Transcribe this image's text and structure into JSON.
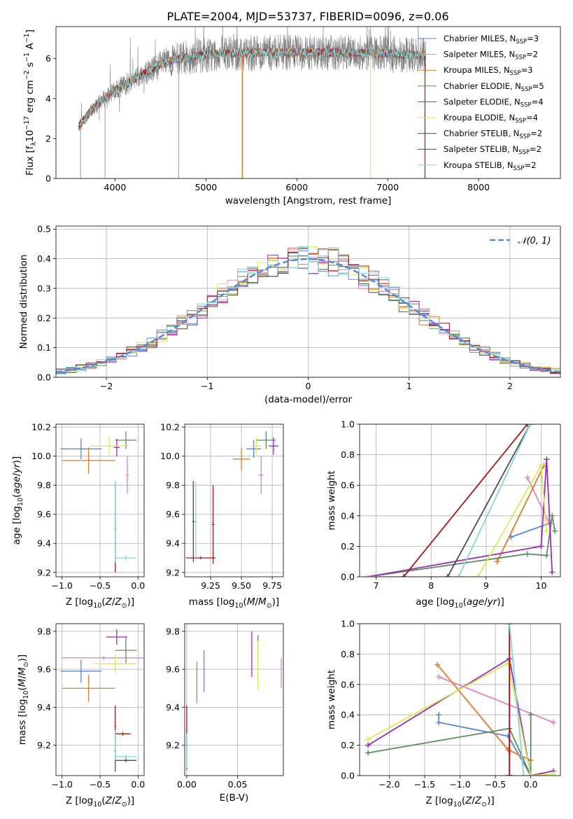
{
  "figure": {
    "title": "PLATE=2004, MJD=53737, FIBERID=0096, z=0.06",
    "colors": {
      "Chabrier MILES": "#5b86d6",
      "Salpeter MILES": "#e384bd",
      "Kroupa MILES": "#e0782a",
      "Chabrier ELODIE": "#5b8d62",
      "Salpeter ELODIE": "#9a2bb0",
      "Kroupa ELODIE": "#d7ea57",
      "Chabrier STELIB": "#4e4e4e",
      "Salpeter STELIB": "#a51818",
      "Kroupa STELIB": "#7fd8d8"
    }
  },
  "chart_data": [
    {
      "id": "spectrum",
      "type": "line",
      "title": "PLATE=2004, MJD=53737, FIBERID=0096, z=0.06",
      "xlabel": "wavelength [Angstrom, rest frame]",
      "ylabel": "Flux [f_λ 10^-17 erg cm^-2 s^-1 A^-1]",
      "xlim": [
        3350,
        8900
      ],
      "ylim": [
        0,
        7.6
      ],
      "xticks": [
        4000,
        5000,
        6000,
        7000,
        8000
      ],
      "yticks": [
        0,
        2,
        4,
        6
      ],
      "grid": false,
      "legend_position": "upper-right",
      "data_color": "#808080",
      "continuum_knots": [
        [
          3600,
          2.6
        ],
        [
          3700,
          3.2
        ],
        [
          3850,
          3.9
        ],
        [
          3950,
          4.2
        ],
        [
          4000,
          4.4
        ],
        [
          4150,
          4.8
        ],
        [
          4300,
          5.2
        ],
        [
          4500,
          5.7
        ],
        [
          4700,
          6.0
        ],
        [
          5000,
          6.2
        ],
        [
          5500,
          6.3
        ],
        [
          6000,
          6.3
        ],
        [
          6500,
          6.3
        ],
        [
          7000,
          6.25
        ],
        [
          7400,
          6.15
        ]
      ],
      "spikes_to_zero": [
        3620,
        3890,
        4700,
        5400,
        6810,
        7410
      ],
      "series": [
        {
          "name": "Chabrier MILES, N_SSP=3",
          "label_main": "Chabrier MILES, N",
          "label_sub": "SSP",
          "label_tail": "=3"
        },
        {
          "name": "Salpeter MILES, N_SSP=2",
          "label_main": "Salpeter MILES, N",
          "label_sub": "SSP",
          "label_tail": "=2"
        },
        {
          "name": "Kroupa MILES, N_SSP=3",
          "label_main": "Kroupa MILES, N",
          "label_sub": "SSP",
          "label_tail": "=3"
        },
        {
          "name": "Chabrier ELODIE, N_SSP=5",
          "label_main": "Chabrier ELODIE, N",
          "label_sub": "SSP",
          "label_tail": "=5"
        },
        {
          "name": "Salpeter ELODIE, N_SSP=4",
          "label_main": "Salpeter ELODIE, N",
          "label_sub": "SSP",
          "label_tail": "=4"
        },
        {
          "name": "Kroupa ELODIE, N_SSP=4",
          "label_main": "Kroupa ELODIE, N",
          "label_sub": "SSP",
          "label_tail": "=4"
        },
        {
          "name": "Chabrier STELIB, N_SSP=2",
          "label_main": "Chabrier STELIB, N",
          "label_sub": "SSP",
          "label_tail": "=2"
        },
        {
          "name": "Salpeter STELIB, N_SSP=2",
          "label_main": "Salpeter STELIB, N",
          "label_sub": "SSP",
          "label_tail": "=2"
        },
        {
          "name": "Kroupa STELIB, N_SSP=2",
          "label_main": "Kroupa STELIB, N",
          "label_sub": "SSP",
          "label_tail": "=2"
        }
      ]
    },
    {
      "id": "residuals",
      "type": "step",
      "xlabel": "(data-model)/error",
      "ylabel": "Normed distribution",
      "xlim": [
        -2.5,
        2.5
      ],
      "ylim": [
        0,
        0.51
      ],
      "xticks": [
        -2,
        -1,
        0,
        1,
        2
      ],
      "yticks": [
        0.0,
        0.1,
        0.2,
        0.3,
        0.4,
        0.5
      ],
      "grid": true,
      "bin_width": 0.1,
      "reference": {
        "name": "𝒩(0, 1)",
        "mean": 0,
        "sigma": 1,
        "color": "#5b86d6",
        "style": "dashed"
      },
      "legend_position": "upper-right"
    },
    {
      "id": "age_vs_Z",
      "type": "errorbar",
      "xlabel": "Z [log10(Z/Z⊙)]",
      "ylabel": "age [log10(age/yr)]",
      "xlim": [
        -1.08,
        0.08
      ],
      "ylim": [
        9.17,
        10.22
      ],
      "xticks": [
        -1.0,
        -0.5,
        0.0
      ],
      "yticks": [
        9.2,
        9.4,
        9.6,
        9.8,
        10.0,
        10.2
      ],
      "grid": true,
      "points": [
        {
          "s": "Chabrier MILES",
          "x": -0.75,
          "xe": 0.27,
          "y": 10.05,
          "ye": 0.07
        },
        {
          "s": "Salpeter MILES",
          "x": -0.14,
          "xe": 0.02,
          "y": 9.87,
          "ye": 0.13
        },
        {
          "s": "Kroupa MILES",
          "x": -0.65,
          "xe": 0.35,
          "y": 9.97,
          "ye": 0.09
        },
        {
          "s": "Chabrier ELODIE",
          "x": -0.16,
          "xe": 0.14,
          "y": 10.11,
          "ye": 0.06
        },
        {
          "s": "Salpeter ELODIE",
          "x": -0.28,
          "xe": 0.04,
          "y": 10.06,
          "ye": 0.06
        },
        {
          "s": "Kroupa ELODIE",
          "x": -0.38,
          "xe": 0.26,
          "y": 10.07,
          "ye": 0.06
        },
        {
          "s": "Chabrier STELIB",
          "x": -0.3,
          "xe": 0.01,
          "y": 9.55,
          "ye": 0.27
        },
        {
          "s": "Salpeter STELIB",
          "x": -0.3,
          "xe": 0.01,
          "y": 9.5,
          "ye": 0.3
        },
        {
          "s": "Kroupa STELIB",
          "x": -0.16,
          "xe": 0.14,
          "y": 9.3,
          "ye": 0.02
        },
        {
          "s": "Kroupa STELIB",
          "x": -0.3,
          "xe": 0.01,
          "y": 9.55,
          "ye": 0.28
        }
      ]
    },
    {
      "id": "age_vs_mass",
      "type": "errorbar",
      "xlabel": "mass [log10(M/M⊙)]",
      "ylabel": "",
      "xlim": [
        9.04,
        9.84
      ],
      "ylim": [
        9.17,
        10.22
      ],
      "xticks": [
        9.25,
        9.5,
        9.75
      ],
      "yticks": [
        9.2,
        9.4,
        9.6,
        9.8,
        10.0,
        10.2
      ],
      "grid": true,
      "points": [
        {
          "s": "Chabrier MILES",
          "x": 9.6,
          "xe": 0.06,
          "y": 10.05,
          "ye": 0.06
        },
        {
          "s": "Salpeter MILES",
          "x": 9.66,
          "xe": 0.02,
          "y": 9.87,
          "ye": 0.13
        },
        {
          "s": "Kroupa MILES",
          "x": 9.5,
          "xe": 0.07,
          "y": 9.98,
          "ye": 0.08
        },
        {
          "s": "Chabrier ELODIE",
          "x": 9.7,
          "xe": 0.08,
          "y": 10.11,
          "ye": 0.06
        },
        {
          "s": "Salpeter ELODIE",
          "x": 9.76,
          "xe": 0.04,
          "y": 10.07,
          "ye": 0.06
        },
        {
          "s": "Kroupa ELODIE",
          "x": 9.62,
          "xe": 0.05,
          "y": 10.07,
          "ye": 0.06
        },
        {
          "s": "Chabrier STELIB",
          "x": 9.11,
          "xe": 0.01,
          "y": 9.55,
          "ye": 0.28
        },
        {
          "s": "Salpeter STELIB",
          "x": 9.27,
          "xe": 0.01,
          "y": 9.53,
          "ye": 0.27
        },
        {
          "s": "Salpeter STELIB",
          "x": 9.17,
          "xe": 0.12,
          "y": 9.3,
          "ye": 0.01
        },
        {
          "s": "Kroupa STELIB",
          "x": 9.13,
          "xe": 0.01,
          "y": 9.55,
          "ye": 0.27
        }
      ]
    },
    {
      "id": "weight_vs_age",
      "type": "line",
      "xlabel": "age [log10(age/yr)]",
      "ylabel": "mass weight",
      "xlim": [
        6.7,
        10.35
      ],
      "ylim": [
        0,
        1.0
      ],
      "xticks": [
        7,
        8,
        9,
        10
      ],
      "yticks": [
        0.0,
        0.2,
        0.4,
        0.6,
        0.8,
        1.0
      ],
      "grid": true,
      "series": [
        {
          "s": "Chabrier MILES",
          "pts": [
            [
              9.45,
              0.26
            ],
            [
              10.15,
              0.35
            ]
          ]
        },
        {
          "s": "Salpeter MILES",
          "pts": [
            [
              9.75,
              0.65
            ],
            [
              10.15,
              0.35
            ]
          ]
        },
        {
          "s": "Kroupa MILES",
          "pts": [
            [
              9.2,
              0.1
            ],
            [
              10.05,
              0.73
            ]
          ]
        },
        {
          "s": "Chabrier ELODIE",
          "pts": [
            [
              6.85,
              0.0
            ],
            [
              9.75,
              0.15
            ],
            [
              10.1,
              0.14
            ],
            [
              10.2,
              0.4
            ],
            [
              10.25,
              0.3
            ]
          ]
        },
        {
          "s": "Salpeter ELODIE",
          "pts": [
            [
              6.85,
              0.0
            ],
            [
              10.0,
              0.2
            ],
            [
              10.1,
              0.77
            ],
            [
              10.2,
              0.03
            ]
          ]
        },
        {
          "s": "Kroupa ELODIE",
          "pts": [
            [
              6.85,
              0.0
            ],
            [
              8.85,
              0.0
            ],
            [
              10.0,
              0.73
            ],
            [
              10.1,
              0.3
            ]
          ]
        },
        {
          "s": "Chabrier STELIB",
          "pts": [
            [
              8.3,
              0.0
            ],
            [
              9.8,
              1.0
            ]
          ]
        },
        {
          "s": "Salpeter STELIB",
          "pts": [
            [
              7.5,
              0.0
            ],
            [
              9.75,
              1.0
            ]
          ]
        },
        {
          "s": "Kroupa STELIB",
          "pts": [
            [
              8.5,
              0.0
            ],
            [
              9.8,
              1.0
            ]
          ]
        }
      ]
    },
    {
      "id": "mass_vs_Z",
      "type": "errorbar",
      "xlabel": "Z [log10(Z/Z⊙)]",
      "ylabel": "mass [log10(M/M⊙)]",
      "xlim": [
        -1.08,
        0.08
      ],
      "ylim": [
        9.04,
        9.84
      ],
      "xticks": [
        -1.0,
        -0.5,
        0.0
      ],
      "yticks": [
        9.2,
        9.4,
        9.6,
        9.8
      ],
      "grid": true,
      "points": [
        {
          "s": "Chabrier MILES",
          "x": -0.75,
          "xe": 0.27,
          "y": 9.59,
          "ye": 0.06
        },
        {
          "s": "Salpeter MILES",
          "x": -0.45,
          "xe": 0.55,
          "y": 9.66,
          "ye": 0.01
        },
        {
          "s": "Kroupa MILES",
          "x": -0.65,
          "xe": 0.35,
          "y": 9.5,
          "ye": 0.07
        },
        {
          "s": "Chabrier ELODIE",
          "x": -0.16,
          "xe": 0.14,
          "y": 9.7,
          "ye": 0.07
        },
        {
          "s": "Salpeter ELODIE",
          "x": -0.28,
          "xe": 0.14,
          "y": 9.77,
          "ye": 0.04
        },
        {
          "s": "Kroupa ELODIE",
          "x": -0.3,
          "xe": 0.28,
          "y": 9.63,
          "ye": 0.05
        },
        {
          "s": "Chabrier STELIB",
          "x": -0.16,
          "xe": 0.14,
          "y": 9.12,
          "ye": 0.01
        },
        {
          "s": "Chabrier STELIB",
          "x": -0.3,
          "xe": 0.01,
          "y": 9.17,
          "ye": 0.11
        },
        {
          "s": "Salpeter STELIB",
          "x": -0.2,
          "xe": 0.1,
          "y": 9.26,
          "ye": 0.01
        },
        {
          "s": "Salpeter STELIB",
          "x": -0.3,
          "xe": 0.01,
          "y": 9.3,
          "ye": 0.11
        },
        {
          "s": "Kroupa STELIB",
          "x": -0.16,
          "xe": 0.14,
          "y": 9.14,
          "ye": 0.01
        },
        {
          "s": "Kroupa STELIB",
          "x": -0.3,
          "xe": 0.01,
          "y": 9.2,
          "ye": 0.08
        }
      ]
    },
    {
      "id": "mass_vs_ebv",
      "type": "errorbar",
      "xlabel": "E(B-V)",
      "ylabel": "",
      "xlim": [
        -0.002,
        0.095
      ],
      "ylim": [
        9.04,
        9.84
      ],
      "xticks": [
        0.0,
        0.05
      ],
      "yticks": [
        9.2,
        9.4,
        9.6,
        9.8
      ],
      "grid": true,
      "points": [
        {
          "s": "Chabrier MILES",
          "x": 0.017,
          "xe": 0,
          "y": 9.59,
          "ye": 0.11
        },
        {
          "s": "Salpeter MILES",
          "x": 0.093,
          "xe": 0,
          "y": 9.58,
          "ye": 0.08
        },
        {
          "s": "Kroupa MILES",
          "x": 0.01,
          "xe": 0,
          "y": 9.53,
          "ye": 0.11
        },
        {
          "s": "Chabrier ELODIE",
          "x": 0.07,
          "xe": 0,
          "y": 9.7,
          "ye": 0.08
        },
        {
          "s": "Salpeter ELODIE",
          "x": 0.064,
          "xe": 0,
          "y": 9.68,
          "ye": 0.12
        },
        {
          "s": "Kroupa ELODIE",
          "x": 0.07,
          "xe": 0,
          "y": 9.62,
          "ye": 0.13
        },
        {
          "s": "Chabrier STELIB",
          "x": 0.0,
          "xe": 0,
          "y": 9.15,
          "ye": 0.08
        },
        {
          "s": "Salpeter STELIB",
          "x": 0.0,
          "xe": 0,
          "y": 9.3,
          "ye": 0.11
        },
        {
          "s": "Kroupa STELIB",
          "x": 0.0,
          "xe": 0,
          "y": 9.17,
          "ye": 0.09
        }
      ]
    },
    {
      "id": "weight_vs_Z",
      "type": "line",
      "xlabel": "Z [log10(Z/Z⊙)]",
      "ylabel": "mass weight",
      "xlim": [
        -2.42,
        0.42
      ],
      "ylim": [
        0,
        1.0
      ],
      "xticks": [
        -2.0,
        -1.5,
        -1.0,
        -0.5,
        0.0
      ],
      "yticks": [
        0.0,
        0.2,
        0.4,
        0.6,
        0.8,
        1.0
      ],
      "grid": true,
      "series": [
        {
          "s": "Chabrier MILES",
          "pts": [
            [
              -1.3,
              0.4
            ],
            [
              -1.3,
              0.35
            ],
            [
              -0.32,
              0.26
            ],
            [
              0.0,
              0.0
            ]
          ]
        },
        {
          "s": "Salpeter MILES",
          "pts": [
            [
              -1.3,
              0.65
            ],
            [
              0.32,
              0.35
            ]
          ]
        },
        {
          "s": "Kroupa MILES",
          "pts": [
            [
              -1.32,
              0.73
            ],
            [
              -0.32,
              0.17
            ],
            [
              0.0,
              0.1
            ]
          ]
        },
        {
          "s": "Chabrier ELODIE",
          "pts": [
            [
              -2.3,
              0.15
            ],
            [
              -0.3,
              0.31
            ],
            [
              0.0,
              0.0
            ],
            [
              0.0,
              0.4
            ]
          ]
        },
        {
          "s": "Salpeter ELODIE",
          "pts": [
            [
              -2.3,
              0.2
            ],
            [
              -0.3,
              0.77
            ],
            [
              0.0,
              0.0
            ],
            [
              0.32,
              0.03
            ]
          ]
        },
        {
          "s": "Kroupa ELODIE",
          "pts": [
            [
              -2.3,
              0.24
            ],
            [
              -0.32,
              0.74
            ],
            [
              0.0,
              0.0
            ],
            [
              0.32,
              0.01
            ]
          ]
        },
        {
          "s": "Chabrier STELIB",
          "pts": [
            [
              -0.3,
              1.0
            ],
            [
              -0.3,
              0.0
            ]
          ]
        },
        {
          "s": "Salpeter STELIB",
          "pts": [
            [
              -0.3,
              0.0
            ],
            [
              -0.3,
              1.0
            ]
          ]
        },
        {
          "s": "Kroupa STELIB",
          "pts": [
            [
              -0.3,
              1.0
            ],
            [
              -0.1,
              0.0
            ]
          ]
        }
      ]
    }
  ]
}
